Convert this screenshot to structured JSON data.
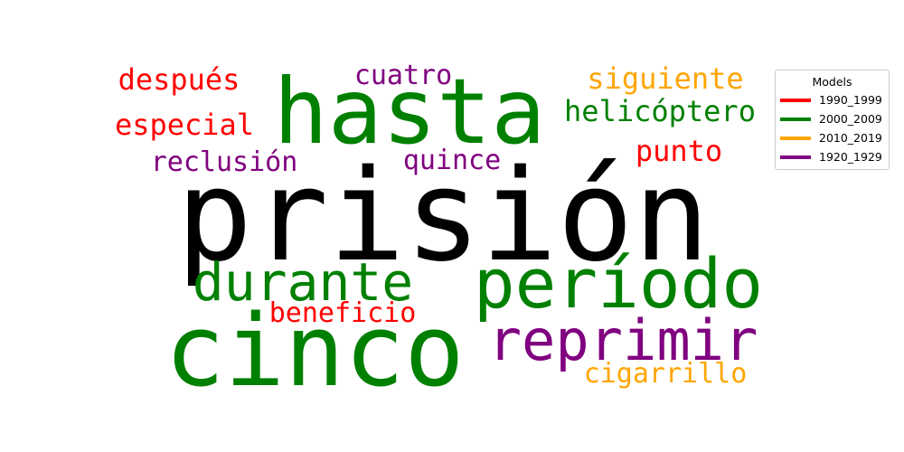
{
  "chart_data": {
    "type": "wordcloud",
    "legend": {
      "title": "Models",
      "placement": "top-right",
      "entries": [
        {
          "label": "1990_1999",
          "color": "#ff0000"
        },
        {
          "label": "2000_2009",
          "color": "#008000"
        },
        {
          "label": "2010_2019",
          "color": "#ffa500"
        },
        {
          "label": "1920_1929",
          "color": "#800080"
        }
      ]
    },
    "words": [
      {
        "text": "prisión",
        "group": "",
        "color": "#000000"
      },
      {
        "text": "cinco",
        "group": "2000_2009",
        "color": "#008000"
      },
      {
        "text": "hasta",
        "group": "2000_2009",
        "color": "#008000"
      },
      {
        "text": "período",
        "group": "2000_2009",
        "color": "#008000"
      },
      {
        "text": "reprimir",
        "group": "1920_1929",
        "color": "#800080"
      },
      {
        "text": "durante",
        "group": "2000_2009",
        "color": "#008000"
      },
      {
        "text": "helicóptero",
        "group": "2000_2009",
        "color": "#008000"
      },
      {
        "text": "siguiente",
        "group": "2010_2019",
        "color": "#ffa500"
      },
      {
        "text": "cigarrillo",
        "group": "2010_2019",
        "color": "#ffa500"
      },
      {
        "text": "después",
        "group": "1990_1999",
        "color": "#ff0000"
      },
      {
        "text": "especial",
        "group": "1990_1999",
        "color": "#ff0000"
      },
      {
        "text": "beneficio",
        "group": "1990_1999",
        "color": "#ff0000"
      },
      {
        "text": "punto",
        "group": "1990_1999",
        "color": "#ff0000"
      },
      {
        "text": "reclusión",
        "group": "1920_1929",
        "color": "#800080"
      },
      {
        "text": "cuatro",
        "group": "1920_1929",
        "color": "#800080"
      },
      {
        "text": "quince",
        "group": "1920_1929",
        "color": "#800080"
      }
    ]
  }
}
